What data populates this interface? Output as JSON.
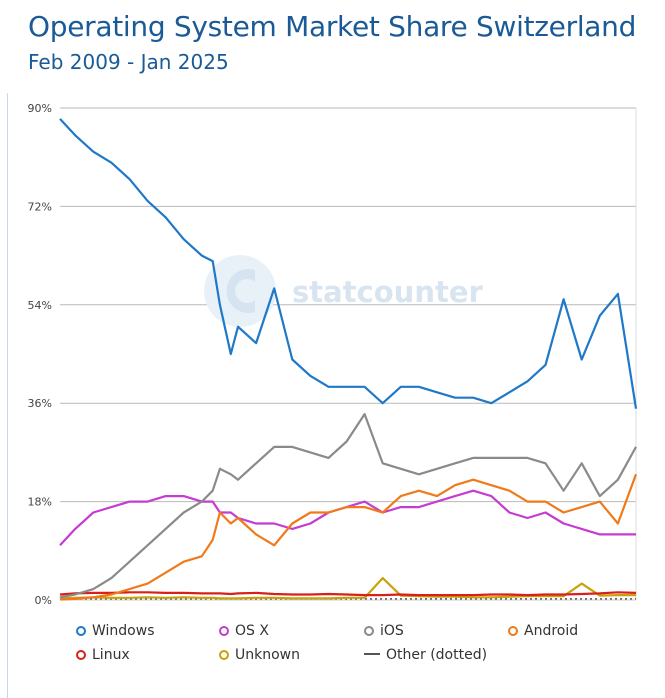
{
  "header": {
    "title": "Operating System Market Share Switzerland",
    "subtitle": "Feb 2009 - Jan 2025"
  },
  "watermark": "statcounter",
  "colors": {
    "Windows": "#1f78c8",
    "OS X": "#c63bd1",
    "iOS": "#8a8a8a",
    "Android": "#f07a1a",
    "Linux": "#d8201a",
    "Unknown": "#c8a20a",
    "Other (dotted)": "#555555"
  },
  "chart_data": {
    "type": "line",
    "title": "Operating System Market Share Switzerland",
    "subtitle": "Feb 2009 - Jan 2025",
    "x_range": [
      "2009-02",
      "2025-01"
    ],
    "ylim": [
      0,
      90
    ],
    "y_ticks": [
      0,
      18,
      36,
      54,
      72,
      90
    ],
    "y_tick_labels": [
      "0%",
      "18%",
      "36%",
      "54%",
      "72%",
      "90%"
    ],
    "grid": true,
    "legend_position": "bottom",
    "x": [
      2009.08,
      2009.5,
      2010.0,
      2010.5,
      2011.0,
      2011.5,
      2012.0,
      2012.5,
      2013.0,
      2013.3,
      2013.5,
      2013.8,
      2014.0,
      2014.5,
      2015.0,
      2015.5,
      2016.0,
      2016.5,
      2017.0,
      2017.5,
      2018.0,
      2018.5,
      2019.0,
      2019.5,
      2020.0,
      2020.5,
      2021.0,
      2021.5,
      2022.0,
      2022.5,
      2023.0,
      2023.5,
      2024.0,
      2024.5,
      2025.0
    ],
    "series": [
      {
        "name": "Windows",
        "values": [
          88,
          85,
          82,
          80,
          77,
          73,
          70,
          66,
          63,
          62,
          54,
          45,
          50,
          47,
          57,
          44,
          41,
          39,
          39,
          39,
          36,
          39,
          39,
          38,
          37,
          37,
          36,
          38,
          40,
          43,
          55,
          44,
          52,
          56,
          35
        ]
      },
      {
        "name": "OS X",
        "values": [
          10,
          13,
          16,
          17,
          18,
          18,
          19,
          19,
          18,
          18,
          16,
          16,
          15,
          14,
          14,
          13,
          14,
          16,
          17,
          18,
          16,
          17,
          17,
          18,
          19,
          20,
          19,
          16,
          15,
          16,
          14,
          13,
          12,
          12,
          12
        ]
      },
      {
        "name": "iOS",
        "values": [
          0.5,
          1.0,
          2,
          4,
          7,
          10,
          13,
          16,
          18,
          20,
          24,
          23,
          22,
          25,
          28,
          28,
          27,
          26,
          29,
          34,
          25,
          24,
          23,
          24,
          25,
          26,
          26,
          26,
          26,
          25,
          20,
          25,
          19,
          22,
          28
        ]
      },
      {
        "name": "Android",
        "values": [
          0.1,
          0.2,
          0.5,
          1,
          2,
          3,
          5,
          7,
          8,
          11,
          16,
          14,
          15,
          12,
          10,
          14,
          16,
          16,
          17,
          17,
          16,
          19,
          20,
          19,
          21,
          22,
          21,
          20,
          18,
          18,
          16,
          17,
          18,
          14,
          23
        ]
      },
      {
        "name": "Linux",
        "values": [
          1,
          1.2,
          1.3,
          1.3,
          1.4,
          1.4,
          1.3,
          1.3,
          1.2,
          1.2,
          1.2,
          1.1,
          1.2,
          1.3,
          1.1,
          1.0,
          1.0,
          1.1,
          1.0,
          0.9,
          0.9,
          1.0,
          0.9,
          0.9,
          0.9,
          0.9,
          1.0,
          1.0,
          0.9,
          1.0,
          1.0,
          1.1,
          1.2,
          1.4,
          1.3
        ]
      },
      {
        "name": "Unknown",
        "values": [
          0.3,
          0.4,
          0.5,
          0.4,
          0.4,
          0.5,
          0.4,
          0.5,
          0.4,
          0.4,
          0.3,
          0.3,
          0.3,
          0.4,
          0.4,
          0.3,
          0.3,
          0.3,
          0.4,
          0.4,
          4.0,
          0.8,
          0.7,
          0.6,
          0.6,
          0.5,
          0.5,
          0.6,
          0.7,
          0.7,
          0.7,
          3.0,
          0.8,
          0.9,
          0.9
        ]
      },
      {
        "name": "Other (dotted)",
        "values": [
          0.2,
          0.2,
          0.2,
          0.2,
          0.2,
          0.2,
          0.2,
          0.2,
          0.2,
          0.2,
          0.2,
          0.2,
          0.2,
          0.2,
          0.2,
          0.2,
          0.2,
          0.2,
          0.2,
          0.2,
          0.2,
          0.2,
          0.2,
          0.2,
          0.2,
          0.2,
          0.2,
          0.2,
          0.2,
          0.2,
          0.2,
          0.2,
          0.2,
          0.2,
          0.2
        ]
      }
    ]
  },
  "legend": [
    {
      "label": "Windows",
      "style": "circle"
    },
    {
      "label": "OS X",
      "style": "circle"
    },
    {
      "label": "iOS",
      "style": "circle"
    },
    {
      "label": "Android",
      "style": "circle"
    },
    {
      "label": "Linux",
      "style": "circle"
    },
    {
      "label": "Unknown",
      "style": "circle"
    },
    {
      "label": "Other (dotted)",
      "style": "dash"
    }
  ]
}
